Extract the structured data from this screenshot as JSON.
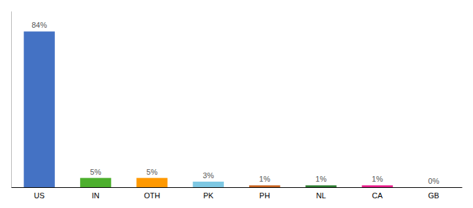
{
  "chart_data": {
    "type": "bar",
    "categories": [
      "US",
      "IN",
      "OTH",
      "PK",
      "PH",
      "NL",
      "CA",
      "GB"
    ],
    "values": [
      84,
      5,
      5,
      3,
      1,
      1,
      1,
      0
    ],
    "value_labels": [
      "84%",
      "5%",
      "5%",
      "3%",
      "1%",
      "1%",
      "1%",
      "0%"
    ],
    "data_labels": true,
    "colors": [
      "#4472c4",
      "#4daf2e",
      "#ff9900",
      "#7ec8e3",
      "#c86420",
      "#2e7d32",
      "#e91e8c",
      "#4472c4"
    ],
    "ylim": [
      0,
      95
    ],
    "grid": false,
    "tick_labels": "x"
  }
}
